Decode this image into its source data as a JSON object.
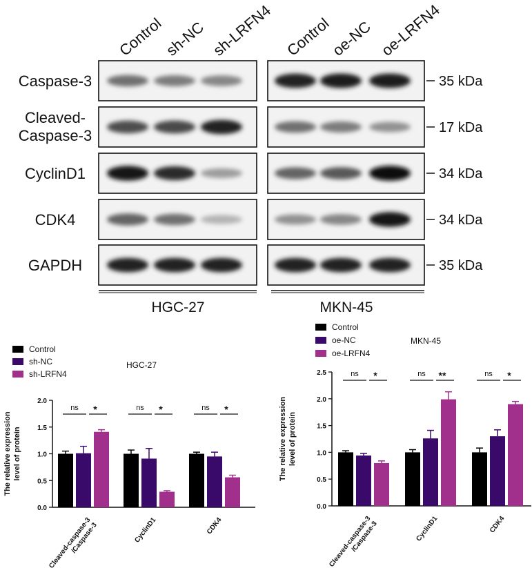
{
  "western_blot": {
    "lane_headers": {
      "left": [
        "Control",
        "sh-NC",
        "sh-LRFN4"
      ],
      "right": [
        "Control",
        "oe-NC",
        "oe-LRFN4"
      ]
    },
    "rows": [
      {
        "label_lines": [
          "Caspase-3"
        ],
        "kda": "35 kDa",
        "left_intensity": [
          0.55,
          0.5,
          0.45
        ],
        "right_intensity": [
          0.9,
          0.92,
          0.92
        ]
      },
      {
        "label_lines": [
          "Cleaved-",
          "Caspase-3"
        ],
        "kda": "17 kDa",
        "left_intensity": [
          0.7,
          0.72,
          0.9
        ],
        "right_intensity": [
          0.55,
          0.5,
          0.4
        ]
      },
      {
        "label_lines": [
          "CyclinD1"
        ],
        "kda": "34 kDa",
        "left_intensity": [
          0.95,
          0.85,
          0.35
        ],
        "right_intensity": [
          0.6,
          0.65,
          0.98
        ]
      },
      {
        "label_lines": [
          "CDK4"
        ],
        "kda": "34 kDa",
        "left_intensity": [
          0.6,
          0.55,
          0.25
        ],
        "right_intensity": [
          0.4,
          0.45,
          0.95
        ]
      },
      {
        "label_lines": [
          "GAPDH"
        ],
        "kda": "35 kDa",
        "left_intensity": [
          0.9,
          0.9,
          0.9
        ],
        "right_intensity": [
          0.9,
          0.9,
          0.9
        ]
      }
    ],
    "cell_lines": {
      "left": "HGC-27",
      "right": "MKN-45"
    }
  },
  "colors": {
    "control": "#000000",
    "nc": "#3a0a6b",
    "treatment": "#a0308c"
  },
  "chart_data": [
    {
      "type": "bar",
      "title": "HGC-27",
      "ylabel": "The relative expression level of protein",
      "ylim": [
        0,
        2.0
      ],
      "yticks": [
        "0.0",
        "0.5",
        "1.0",
        "1.5",
        "2.0"
      ],
      "categories": [
        "Cleaved-caspase-3 /Caspase-3",
        "CyclinD1",
        "CDK4"
      ],
      "series": [
        {
          "name": "Control",
          "values": [
            1.0,
            1.0,
            1.0
          ],
          "errors": [
            0.05,
            0.07,
            0.03
          ]
        },
        {
          "name": "sh-NC",
          "values": [
            1.01,
            0.91,
            0.95
          ],
          "errors": [
            0.13,
            0.19,
            0.08
          ]
        },
        {
          "name": "sh-LRFN4",
          "values": [
            1.41,
            0.29,
            0.56
          ],
          "errors": [
            0.04,
            0.02,
            0.04
          ]
        }
      ],
      "significance": [
        [
          "ns",
          "*"
        ],
        [
          "ns",
          "*"
        ],
        [
          "ns",
          "*"
        ]
      ],
      "legend": "top-left"
    },
    {
      "type": "bar",
      "title": "MKN-45",
      "ylabel": "The relative expression level of protein",
      "ylim": [
        0,
        2.5
      ],
      "yticks": [
        "0.0",
        "0.5",
        "1.0",
        "1.5",
        "2.0",
        "2.5"
      ],
      "categories": [
        "Cleaved-caspase-3 /Caspase-3",
        "CyclinD1",
        "CDK4"
      ],
      "series": [
        {
          "name": "Control",
          "values": [
            1.0,
            1.0,
            1.0
          ],
          "errors": [
            0.03,
            0.05,
            0.08
          ]
        },
        {
          "name": "oe-NC",
          "values": [
            0.94,
            1.26,
            1.3
          ],
          "errors": [
            0.04,
            0.15,
            0.12
          ]
        },
        {
          "name": "oe-LRFN4",
          "values": [
            0.8,
            1.99,
            1.9
          ],
          "errors": [
            0.04,
            0.14,
            0.05
          ]
        }
      ],
      "significance": [
        [
          "ns",
          "*"
        ],
        [
          "ns",
          "**"
        ],
        [
          "ns",
          "*"
        ]
      ],
      "legend": "top-left"
    }
  ]
}
